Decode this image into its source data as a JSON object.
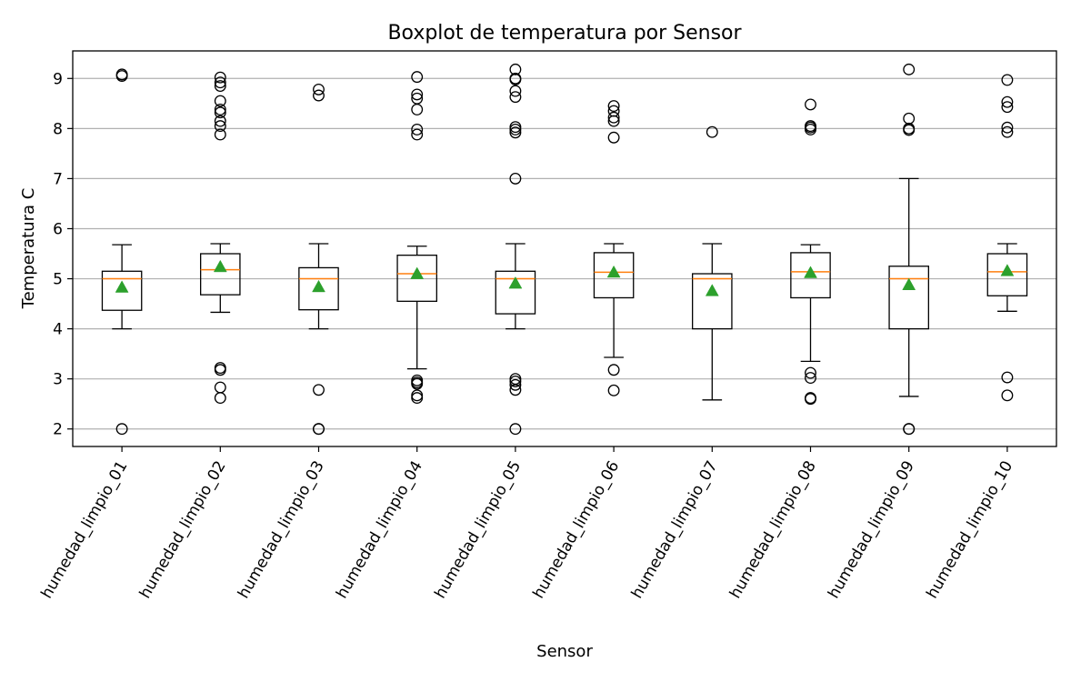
{
  "chart_data": {
    "type": "box",
    "title": "Boxplot de temperatura por Sensor",
    "xlabel": "Sensor",
    "ylabel": "Temperatura C",
    "ylim": [
      1.65,
      9.55
    ],
    "yticks": [
      2,
      3,
      4,
      5,
      6,
      7,
      8,
      9
    ],
    "grid": "y",
    "colors": {
      "box": "#000000",
      "median": "#ff7f0e",
      "mean": "#2ca02c",
      "grid": "#b0b0b0"
    },
    "categories": [
      "humedad_limpio_01",
      "humedad_limpio_02",
      "humedad_limpio_03",
      "humedad_limpio_04",
      "humedad_limpio_05",
      "humedad_limpio_06",
      "humedad_limpio_07",
      "humedad_limpio_08",
      "humedad_limpio_09",
      "humedad_limpio_10"
    ],
    "boxes": [
      {
        "whislo": 4.0,
        "q1": 4.37,
        "med": 5.0,
        "q3": 5.15,
        "whishi": 5.68,
        "mean": 4.83,
        "fliers": [
          9.05,
          9.08,
          2.0
        ]
      },
      {
        "whislo": 4.33,
        "q1": 4.68,
        "med": 5.18,
        "q3": 5.5,
        "whishi": 5.7,
        "mean": 5.24,
        "fliers": [
          9.02,
          8.92,
          8.85,
          8.55,
          8.38,
          8.32,
          8.15,
          8.05,
          7.88,
          3.22,
          3.18,
          2.83,
          2.62
        ]
      },
      {
        "whislo": 4.0,
        "q1": 4.38,
        "med": 5.0,
        "q3": 5.22,
        "whishi": 5.7,
        "mean": 4.84,
        "fliers": [
          8.78,
          8.66,
          2.78,
          2.0,
          2.0
        ]
      },
      {
        "whislo": 3.2,
        "q1": 4.55,
        "med": 5.1,
        "q3": 5.47,
        "whishi": 5.65,
        "mean": 5.1,
        "fliers": [
          9.03,
          8.68,
          8.6,
          8.38,
          7.98,
          7.88,
          2.97,
          2.93,
          2.9,
          2.67,
          2.62
        ]
      },
      {
        "whislo": 4.0,
        "q1": 4.3,
        "med": 5.0,
        "q3": 5.15,
        "whishi": 5.7,
        "mean": 4.91,
        "fliers": [
          9.18,
          9.0,
          8.98,
          8.75,
          8.63,
          8.03,
          7.98,
          7.92,
          7.0,
          3.0,
          2.95,
          2.88,
          2.78,
          2.0
        ]
      },
      {
        "whislo": 3.43,
        "q1": 4.62,
        "med": 5.13,
        "q3": 5.52,
        "whishi": 5.7,
        "mean": 5.13,
        "fliers": [
          8.45,
          8.35,
          8.22,
          8.15,
          7.82,
          3.18,
          2.77
        ]
      },
      {
        "whislo": 2.58,
        "q1": 4.0,
        "med": 5.0,
        "q3": 5.1,
        "whishi": 5.7,
        "mean": 4.76,
        "fliers": [
          7.93
        ]
      },
      {
        "whislo": 3.35,
        "q1": 4.62,
        "med": 5.14,
        "q3": 5.52,
        "whishi": 5.68,
        "mean": 5.12,
        "fliers": [
          8.48,
          8.05,
          8.02,
          7.98,
          3.12,
          3.02,
          2.62,
          2.6
        ]
      },
      {
        "whislo": 2.65,
        "q1": 4.0,
        "med": 5.0,
        "q3": 5.25,
        "whishi": 7.0,
        "mean": 4.88,
        "fliers": [
          9.18,
          8.2,
          8.0,
          7.97,
          2.0,
          2.0
        ]
      },
      {
        "whislo": 4.35,
        "q1": 4.66,
        "med": 5.14,
        "q3": 5.5,
        "whishi": 5.7,
        "mean": 5.16,
        "fliers": [
          8.97,
          8.53,
          8.43,
          8.02,
          7.93,
          3.03,
          2.67
        ]
      }
    ]
  }
}
